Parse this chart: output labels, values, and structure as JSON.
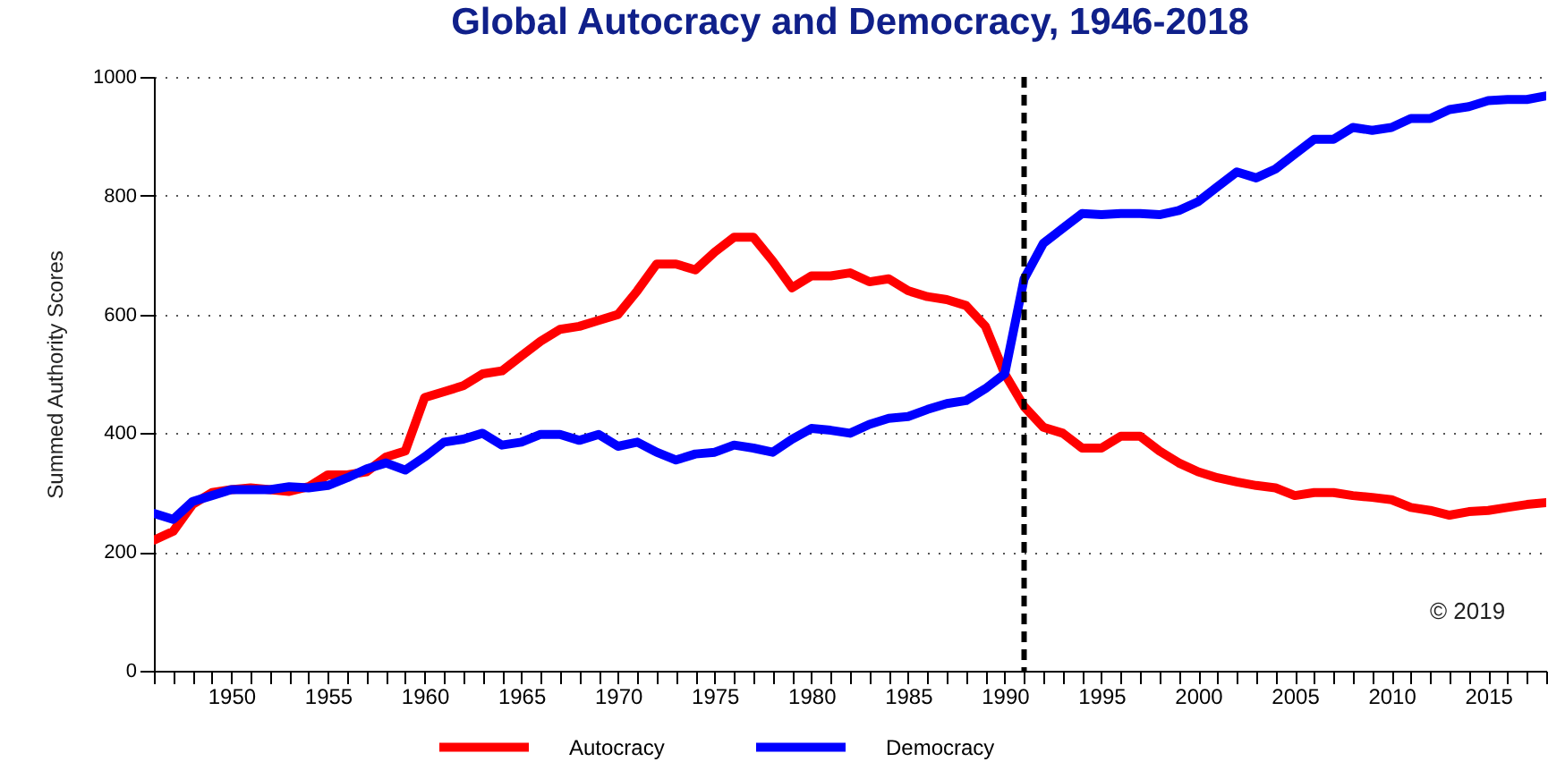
{
  "chart_data": {
    "type": "line",
    "title": "Global Autocracy and Democracy, 1946-2018",
    "ylabel": "Summed Authority Scores",
    "x": [
      1946,
      1947,
      1948,
      1949,
      1950,
      1951,
      1952,
      1953,
      1954,
      1955,
      1956,
      1957,
      1958,
      1959,
      1960,
      1961,
      1962,
      1963,
      1964,
      1965,
      1966,
      1967,
      1968,
      1969,
      1970,
      1971,
      1972,
      1973,
      1974,
      1975,
      1976,
      1977,
      1978,
      1979,
      1980,
      1981,
      1982,
      1983,
      1984,
      1985,
      1986,
      1987,
      1988,
      1989,
      1990,
      1991,
      1992,
      1993,
      1994,
      1995,
      1996,
      1997,
      1998,
      1999,
      2000,
      2001,
      2002,
      2003,
      2004,
      2005,
      2006,
      2007,
      2008,
      2009,
      2010,
      2011,
      2012,
      2013,
      2014,
      2015,
      2016,
      2017,
      2018
    ],
    "series": [
      {
        "name": "Autocracy",
        "color": "#ff0000",
        "values": [
          220,
          235,
          280,
          300,
          305,
          308,
          305,
          302,
          310,
          330,
          330,
          335,
          360,
          370,
          460,
          470,
          480,
          500,
          505,
          530,
          555,
          575,
          580,
          590,
          600,
          640,
          685,
          685,
          675,
          705,
          730,
          730,
          690,
          645,
          665,
          665,
          670,
          655,
          660,
          640,
          630,
          625,
          615,
          580,
          500,
          445,
          410,
          400,
          375,
          375,
          395,
          395,
          370,
          350,
          335,
          325,
          318,
          312,
          308,
          295,
          300,
          300,
          295,
          292,
          288,
          275,
          270,
          262,
          268,
          270,
          275,
          280,
          283
        ]
      },
      {
        "name": "Democracy",
        "color": "#0000ff",
        "values": [
          265,
          255,
          285,
          295,
          305,
          305,
          305,
          310,
          308,
          312,
          325,
          340,
          350,
          338,
          360,
          385,
          390,
          400,
          380,
          385,
          398,
          398,
          388,
          398,
          378,
          385,
          368,
          355,
          365,
          368,
          380,
          375,
          368,
          390,
          408,
          405,
          400,
          415,
          425,
          428,
          440,
          450,
          455,
          475,
          500,
          660,
          720,
          745,
          770,
          768,
          770,
          770,
          768,
          775,
          790,
          815,
          840,
          830,
          845,
          870,
          895,
          895,
          915,
          910,
          915,
          930,
          930,
          945,
          950,
          960,
          962,
          962,
          968
        ]
      }
    ],
    "xlim": [
      1946,
      2018
    ],
    "xticks": [
      {
        "value": 1946,
        "label": null
      },
      {
        "value": 1947,
        "label": null
      },
      {
        "value": 1948,
        "label": null
      },
      {
        "value": 1949,
        "label": null
      },
      1950,
      {
        "value": 1951,
        "label": null
      },
      {
        "value": 1952,
        "label": null
      },
      {
        "value": 1953,
        "label": null
      },
      {
        "value": 1954,
        "label": null
      },
      1955,
      {
        "value": 1956,
        "label": null
      },
      {
        "value": 1957,
        "label": null
      },
      {
        "value": 1958,
        "label": null
      },
      {
        "value": 1959,
        "label": null
      },
      1960,
      {
        "value": 1961,
        "label": null
      },
      {
        "value": 1962,
        "label": null
      },
      {
        "value": 1963,
        "label": null
      },
      {
        "value": 1964,
        "label": null
      },
      1965,
      {
        "value": 1966,
        "label": null
      },
      {
        "value": 1967,
        "label": null
      },
      {
        "value": 1968,
        "label": null
      },
      {
        "value": 1969,
        "label": null
      },
      1970,
      {
        "value": 1971,
        "label": null
      },
      {
        "value": 1972,
        "label": null
      },
      {
        "value": 1973,
        "label": null
      },
      {
        "value": 1974,
        "label": null
      },
      1975,
      {
        "value": 1976,
        "label": null
      },
      {
        "value": 1977,
        "label": null
      },
      {
        "value": 1978,
        "label": null
      },
      {
        "value": 1979,
        "label": null
      },
      1980,
      {
        "value": 1981,
        "label": null
      },
      {
        "value": 1982,
        "label": null
      },
      {
        "value": 1983,
        "label": null
      },
      {
        "value": 1984,
        "label": null
      },
      1985,
      {
        "value": 1986,
        "label": null
      },
      {
        "value": 1987,
        "label": null
      },
      {
        "value": 1988,
        "label": null
      },
      {
        "value": 1989,
        "label": null
      },
      1990,
      {
        "value": 1991,
        "label": null
      },
      {
        "value": 1992,
        "label": null
      },
      {
        "value": 1993,
        "label": null
      },
      {
        "value": 1994,
        "label": null
      },
      1995,
      {
        "value": 1996,
        "label": null
      },
      {
        "value": 1997,
        "label": null
      },
      {
        "value": 1998,
        "label": null
      },
      {
        "value": 1999,
        "label": null
      },
      2000,
      {
        "value": 2001,
        "label": null
      },
      {
        "value": 2002,
        "label": null
      },
      {
        "value": 2003,
        "label": null
      },
      {
        "value": 2004,
        "label": null
      },
      2005,
      {
        "value": 2006,
        "label": null
      },
      {
        "value": 2007,
        "label": null
      },
      {
        "value": 2008,
        "label": null
      },
      {
        "value": 2009,
        "label": null
      },
      2010,
      {
        "value": 2011,
        "label": null
      },
      {
        "value": 2012,
        "label": null
      },
      {
        "value": 2013,
        "label": null
      },
      {
        "value": 2014,
        "label": null
      },
      2015,
      {
        "value": 2016,
        "label": null
      },
      {
        "value": 2017,
        "label": null
      },
      {
        "value": 2018,
        "label": null
      }
    ],
    "ylim": [
      0,
      1000
    ],
    "yticks": [
      0,
      200,
      400,
      600,
      800,
      1000
    ],
    "grid": "y",
    "legend": "bottom",
    "line_style": "solid",
    "marker": "none",
    "ref_lines": [
      {
        "axis": "x",
        "value": 1991,
        "color": "#000000",
        "line_style": "dashed"
      }
    ],
    "annotations": [
      "© 2019"
    ]
  }
}
